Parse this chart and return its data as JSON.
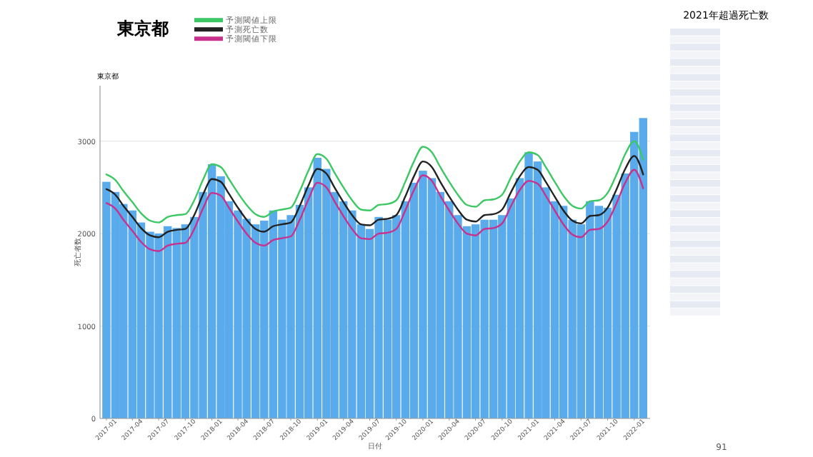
{
  "chart_data": {
    "type": "bar",
    "title": "東京都",
    "subtitle": "東京都",
    "xlabel": "日付",
    "ylabel": "死亡者数",
    "annotations": [
      "2021年超過死亡数",
      "91"
    ],
    "x": [
      "2017-01",
      "2017-02",
      "2017-03",
      "2017-04",
      "2017-05",
      "2017-06",
      "2017-07",
      "2017-08",
      "2017-09",
      "2017-10",
      "2017-11",
      "2017-12",
      "2018-01",
      "2018-02",
      "2018-03",
      "2018-04",
      "2018-05",
      "2018-06",
      "2018-07",
      "2018-08",
      "2018-09",
      "2018-10",
      "2018-11",
      "2018-12",
      "2019-01",
      "2019-02",
      "2019-03",
      "2019-04",
      "2019-05",
      "2019-06",
      "2019-07",
      "2019-08",
      "2019-09",
      "2019-10",
      "2019-11",
      "2019-12",
      "2020-01",
      "2020-02",
      "2020-03",
      "2020-04",
      "2020-05",
      "2020-06",
      "2020-07",
      "2020-08",
      "2020-09",
      "2020-10",
      "2020-11",
      "2020-12",
      "2021-01",
      "2021-02",
      "2021-03",
      "2021-04",
      "2021-05",
      "2021-06",
      "2021-07",
      "2021-08",
      "2021-09",
      "2021-10",
      "2021-11",
      "2021-12",
      "2022-01",
      "2022-02"
    ],
    "series": [
      {
        "color": "#5aabec",
        "values": [
          2560,
          2450,
          2320,
          2250,
          2120,
          2020,
          2000,
          2080,
          2060,
          2100,
          2180,
          2450,
          2750,
          2620,
          2350,
          2250,
          2160,
          2100,
          2140,
          2250,
          2150,
          2200,
          2310,
          2500,
          2820,
          2700,
          2450,
          2350,
          2250,
          2100,
          2050,
          2180,
          2150,
          2200,
          2350,
          2550,
          2680,
          2600,
          2450,
          2350,
          2200,
          2080,
          2100,
          2150,
          2150,
          2200,
          2380,
          2600,
          2880,
          2780,
          2500,
          2350,
          2300,
          2150,
          2100,
          2350,
          2300,
          2280,
          2420,
          2650,
          3100,
          3250
        ]
      },
      {
        "type": "line",
        "name": "予測閾値上限",
        "color": "#3cc864",
        "values": [
          2640,
          2580,
          2460,
          2340,
          2220,
          2140,
          2120,
          2180,
          2200,
          2210,
          2360,
          2580,
          2750,
          2720,
          2590,
          2440,
          2310,
          2210,
          2180,
          2240,
          2260,
          2280,
          2460,
          2680,
          2860,
          2810,
          2660,
          2500,
          2360,
          2260,
          2250,
          2310,
          2320,
          2360,
          2560,
          2780,
          2940,
          2880,
          2720,
          2560,
          2420,
          2310,
          2290,
          2360,
          2370,
          2420,
          2610,
          2780,
          2880,
          2850,
          2720,
          2560,
          2410,
          2300,
          2270,
          2350,
          2360,
          2440,
          2640,
          2860,
          3000,
          2800
        ]
      },
      {
        "type": "line",
        "name": "予測死亡数",
        "color": "#222222",
        "values": [
          2480,
          2420,
          2300,
          2180,
          2060,
          1980,
          1960,
          2020,
          2040,
          2050,
          2200,
          2420,
          2590,
          2560,
          2430,
          2280,
          2150,
          2050,
          2020,
          2080,
          2100,
          2120,
          2300,
          2520,
          2700,
          2650,
          2500,
          2340,
          2200,
          2100,
          2090,
          2150,
          2160,
          2200,
          2400,
          2620,
          2780,
          2720,
          2560,
          2400,
          2260,
          2150,
          2130,
          2200,
          2210,
          2260,
          2450,
          2620,
          2720,
          2690,
          2560,
          2400,
          2250,
          2140,
          2110,
          2190,
          2200,
          2280,
          2480,
          2700,
          2840,
          2640
        ]
      },
      {
        "type": "line",
        "name": "予測閾値下限",
        "color": "#c8328c",
        "values": [
          2330,
          2270,
          2150,
          2030,
          1910,
          1830,
          1810,
          1870,
          1890,
          1900,
          2050,
          2270,
          2440,
          2410,
          2280,
          2130,
          2000,
          1900,
          1870,
          1930,
          1950,
          1970,
          2150,
          2370,
          2550,
          2500,
          2350,
          2190,
          2050,
          1950,
          1940,
          2000,
          2010,
          2050,
          2250,
          2470,
          2630,
          2570,
          2410,
          2250,
          2110,
          2000,
          1980,
          2050,
          2060,
          2110,
          2300,
          2470,
          2570,
          2540,
          2410,
          2250,
          2100,
          1990,
          1960,
          2040,
          2050,
          2130,
          2330,
          2550,
          2690,
          2490
        ]
      }
    ],
    "xlim": [
      "2016-12-10",
      "2022-02-25"
    ],
    "xticks": [
      "2017-01",
      "2017-04",
      "2017-07",
      "2017-10",
      "2018-01",
      "2018-04",
      "2018-07",
      "2018-10",
      "2019-01",
      "2019-04",
      "2019-07",
      "2019-10",
      "2020-01",
      "2020-04",
      "2020-07",
      "2020-10",
      "2021-01",
      "2021-04",
      "2021-07",
      "2021-10",
      "2022-01"
    ],
    "ylim": [
      0,
      3600
    ],
    "yticks": [
      0,
      1000,
      2000,
      3000
    ],
    "grid": "y",
    "legend": "top left"
  }
}
